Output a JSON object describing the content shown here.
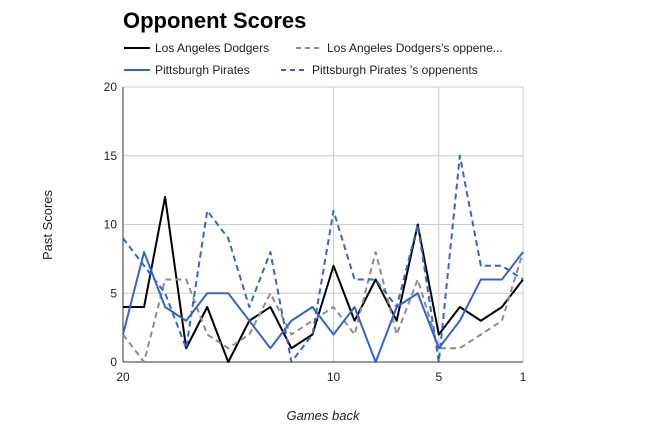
{
  "chart_data": {
    "type": "line",
    "title": "Opponent Scores",
    "xlabel": "Games back",
    "ylabel": "Past Scores",
    "x": [
      20,
      19,
      18,
      17,
      16,
      15,
      14,
      13,
      12,
      11,
      10,
      9,
      8,
      7,
      6,
      5,
      4,
      3,
      2,
      1
    ],
    "xlim": [
      20,
      1
    ],
    "ylim": [
      0,
      20
    ],
    "x_ticks": [
      20,
      10,
      5,
      1
    ],
    "y_ticks": [
      0,
      5,
      10,
      15,
      20
    ],
    "grid": true,
    "legend_position": "top",
    "series": [
      {
        "name": "Los Angeles Dodgers",
        "legend_label": "Los Angeles Dodgers",
        "color": "#000000",
        "dash": "solid",
        "values": [
          4,
          4,
          12,
          1,
          4,
          0,
          3,
          4,
          1,
          2,
          7,
          3,
          6,
          3,
          10,
          2,
          4,
          3,
          4,
          6
        ]
      },
      {
        "name": "Los Angeles Dodgers's oppene...",
        "legend_label": "Los Angeles Dodgers's oppene...",
        "color": "#8c8c8c",
        "dash": "dashed",
        "values": [
          2,
          0,
          6,
          6,
          2,
          1,
          2,
          5,
          2,
          3,
          4,
          2,
          8,
          2,
          6,
          1,
          1,
          2,
          3,
          8
        ]
      },
      {
        "name": "Pittsburgh Pirates",
        "legend_label": "Pittsburgh Pirates",
        "color": "#3366cc",
        "dash": "solid",
        "values": [
          2,
          8,
          4,
          3,
          5,
          5,
          3,
          1,
          3,
          4,
          2,
          4,
          0,
          4,
          5,
          1,
          3,
          6,
          6,
          8
        ]
      },
      {
        "name": "Pittsburgh Pirates 's oppenents",
        "legend_label": "Pittsburgh Pirates 's oppenents",
        "color": "#3366cc",
        "dash": "dashed",
        "values": [
          9,
          7,
          5,
          1,
          11,
          9,
          4,
          8,
          0,
          2,
          11,
          6,
          6,
          4,
          10,
          0,
          15,
          7,
          7,
          6
        ]
      }
    ]
  }
}
